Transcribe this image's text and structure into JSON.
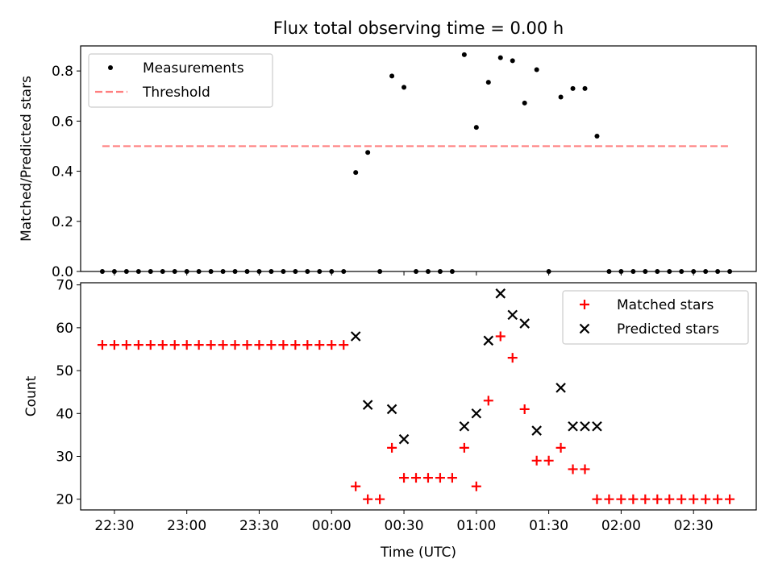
{
  "title": "Flux total observing time = 0.00 h",
  "colors": {
    "measurement": "#000000",
    "threshold": "#ff7f7f",
    "matched": "#ff0000",
    "predicted": "#000000"
  },
  "chart_data": [
    {
      "type": "scatter",
      "title": "Flux total observing time = 0.00 h",
      "xlabel": "",
      "ylabel": "Matched/Predicted stars",
      "ylim": [
        0,
        0.9
      ],
      "yticks": [
        "0.0",
        "0.2",
        "0.4",
        "0.6",
        "0.8"
      ],
      "xlim": [
        "22:16",
        "02:56"
      ],
      "legend_position": "top-left",
      "series": [
        {
          "name": "Measurements",
          "marker": "dot",
          "points": [
            [
              "22:25",
              0
            ],
            [
              "22:30",
              0
            ],
            [
              "22:35",
              0
            ],
            [
              "22:40",
              0
            ],
            [
              "22:45",
              0
            ],
            [
              "22:50",
              0
            ],
            [
              "22:55",
              0
            ],
            [
              "23:00",
              0
            ],
            [
              "23:05",
              0
            ],
            [
              "23:10",
              0
            ],
            [
              "23:15",
              0
            ],
            [
              "23:20",
              0
            ],
            [
              "23:25",
              0
            ],
            [
              "23:30",
              0
            ],
            [
              "23:35",
              0
            ],
            [
              "23:40",
              0
            ],
            [
              "23:45",
              0
            ],
            [
              "23:50",
              0
            ],
            [
              "23:55",
              0
            ],
            [
              "00:00",
              0
            ],
            [
              "00:05",
              0
            ],
            [
              "00:10",
              0.395
            ],
            [
              "00:15",
              0.475
            ],
            [
              "00:20",
              0
            ],
            [
              "00:25",
              0.78
            ],
            [
              "00:30",
              0.735
            ],
            [
              "00:35",
              0
            ],
            [
              "00:40",
              0
            ],
            [
              "00:45",
              0
            ],
            [
              "00:50",
              0
            ],
            [
              "00:55",
              0.865
            ],
            [
              "01:00",
              0.575
            ],
            [
              "01:05",
              0.755
            ],
            [
              "01:10",
              0.853
            ],
            [
              "01:15",
              0.841
            ],
            [
              "01:20",
              0.672
            ],
            [
              "01:25",
              0.805
            ],
            [
              "01:30",
              0
            ],
            [
              "01:35",
              0.696
            ],
            [
              "01:40",
              0.73
            ],
            [
              "01:45",
              0.73
            ],
            [
              "01:50",
              0.54
            ],
            [
              "01:55",
              0
            ],
            [
              "02:00",
              0
            ],
            [
              "02:05",
              0
            ],
            [
              "02:10",
              0
            ],
            [
              "02:15",
              0
            ],
            [
              "02:20",
              0
            ],
            [
              "02:25",
              0
            ],
            [
              "02:30",
              0
            ],
            [
              "02:35",
              0
            ],
            [
              "02:40",
              0
            ],
            [
              "02:45",
              0
            ]
          ]
        },
        {
          "name": "Threshold",
          "style": "dashed",
          "points": [
            [
              "22:25",
              0.5
            ],
            [
              "02:45",
              0.5
            ]
          ]
        }
      ]
    },
    {
      "type": "scatter",
      "title": "",
      "xlabel": "Time (UTC)",
      "ylabel": "Count",
      "ylim": [
        17.5,
        70.5
      ],
      "yticks": [
        "20",
        "30",
        "40",
        "50",
        "60",
        "70"
      ],
      "xlim": [
        "22:16",
        "02:56"
      ],
      "xticks": [
        "22:30",
        "23:00",
        "23:30",
        "00:00",
        "00:30",
        "01:00",
        "01:30",
        "02:00",
        "02:30"
      ],
      "legend_position": "top-right",
      "series": [
        {
          "name": "Matched stars",
          "marker": "plus",
          "points": [
            [
              "22:25",
              56
            ],
            [
              "22:30",
              56
            ],
            [
              "22:35",
              56
            ],
            [
              "22:40",
              56
            ],
            [
              "22:45",
              56
            ],
            [
              "22:50",
              56
            ],
            [
              "22:55",
              56
            ],
            [
              "23:00",
              56
            ],
            [
              "23:05",
              56
            ],
            [
              "23:10",
              56
            ],
            [
              "23:15",
              56
            ],
            [
              "23:20",
              56
            ],
            [
              "23:25",
              56
            ],
            [
              "23:30",
              56
            ],
            [
              "23:35",
              56
            ],
            [
              "23:40",
              56
            ],
            [
              "23:45",
              56
            ],
            [
              "23:50",
              56
            ],
            [
              "23:55",
              56
            ],
            [
              "00:00",
              56
            ],
            [
              "00:05",
              56
            ],
            [
              "00:10",
              23
            ],
            [
              "00:15",
              20
            ],
            [
              "00:20",
              20
            ],
            [
              "00:25",
              32
            ],
            [
              "00:30",
              25
            ],
            [
              "00:35",
              25
            ],
            [
              "00:40",
              25
            ],
            [
              "00:45",
              25
            ],
            [
              "00:50",
              25
            ],
            [
              "00:55",
              32
            ],
            [
              "01:00",
              23
            ],
            [
              "01:05",
              43
            ],
            [
              "01:10",
              58
            ],
            [
              "01:15",
              53
            ],
            [
              "01:20",
              41
            ],
            [
              "01:25",
              29
            ],
            [
              "01:30",
              29
            ],
            [
              "01:35",
              32
            ],
            [
              "01:40",
              27
            ],
            [
              "01:45",
              27
            ],
            [
              "01:50",
              20
            ],
            [
              "01:55",
              20
            ],
            [
              "02:00",
              20
            ],
            [
              "02:05",
              20
            ],
            [
              "02:10",
              20
            ],
            [
              "02:15",
              20
            ],
            [
              "02:20",
              20
            ],
            [
              "02:25",
              20
            ],
            [
              "02:30",
              20
            ],
            [
              "02:35",
              20
            ],
            [
              "02:40",
              20
            ],
            [
              "02:45",
              20
            ]
          ]
        },
        {
          "name": "Predicted stars",
          "marker": "x",
          "points": [
            [
              "00:10",
              58
            ],
            [
              "00:15",
              42
            ],
            [
              "00:25",
              41
            ],
            [
              "00:30",
              34
            ],
            [
              "00:55",
              37
            ],
            [
              "01:00",
              40
            ],
            [
              "01:05",
              57
            ],
            [
              "01:10",
              68
            ],
            [
              "01:15",
              63
            ],
            [
              "01:20",
              61
            ],
            [
              "01:25",
              36
            ],
            [
              "01:35",
              46
            ],
            [
              "01:40",
              37
            ],
            [
              "01:45",
              37
            ],
            [
              "01:50",
              37
            ]
          ]
        }
      ]
    }
  ]
}
